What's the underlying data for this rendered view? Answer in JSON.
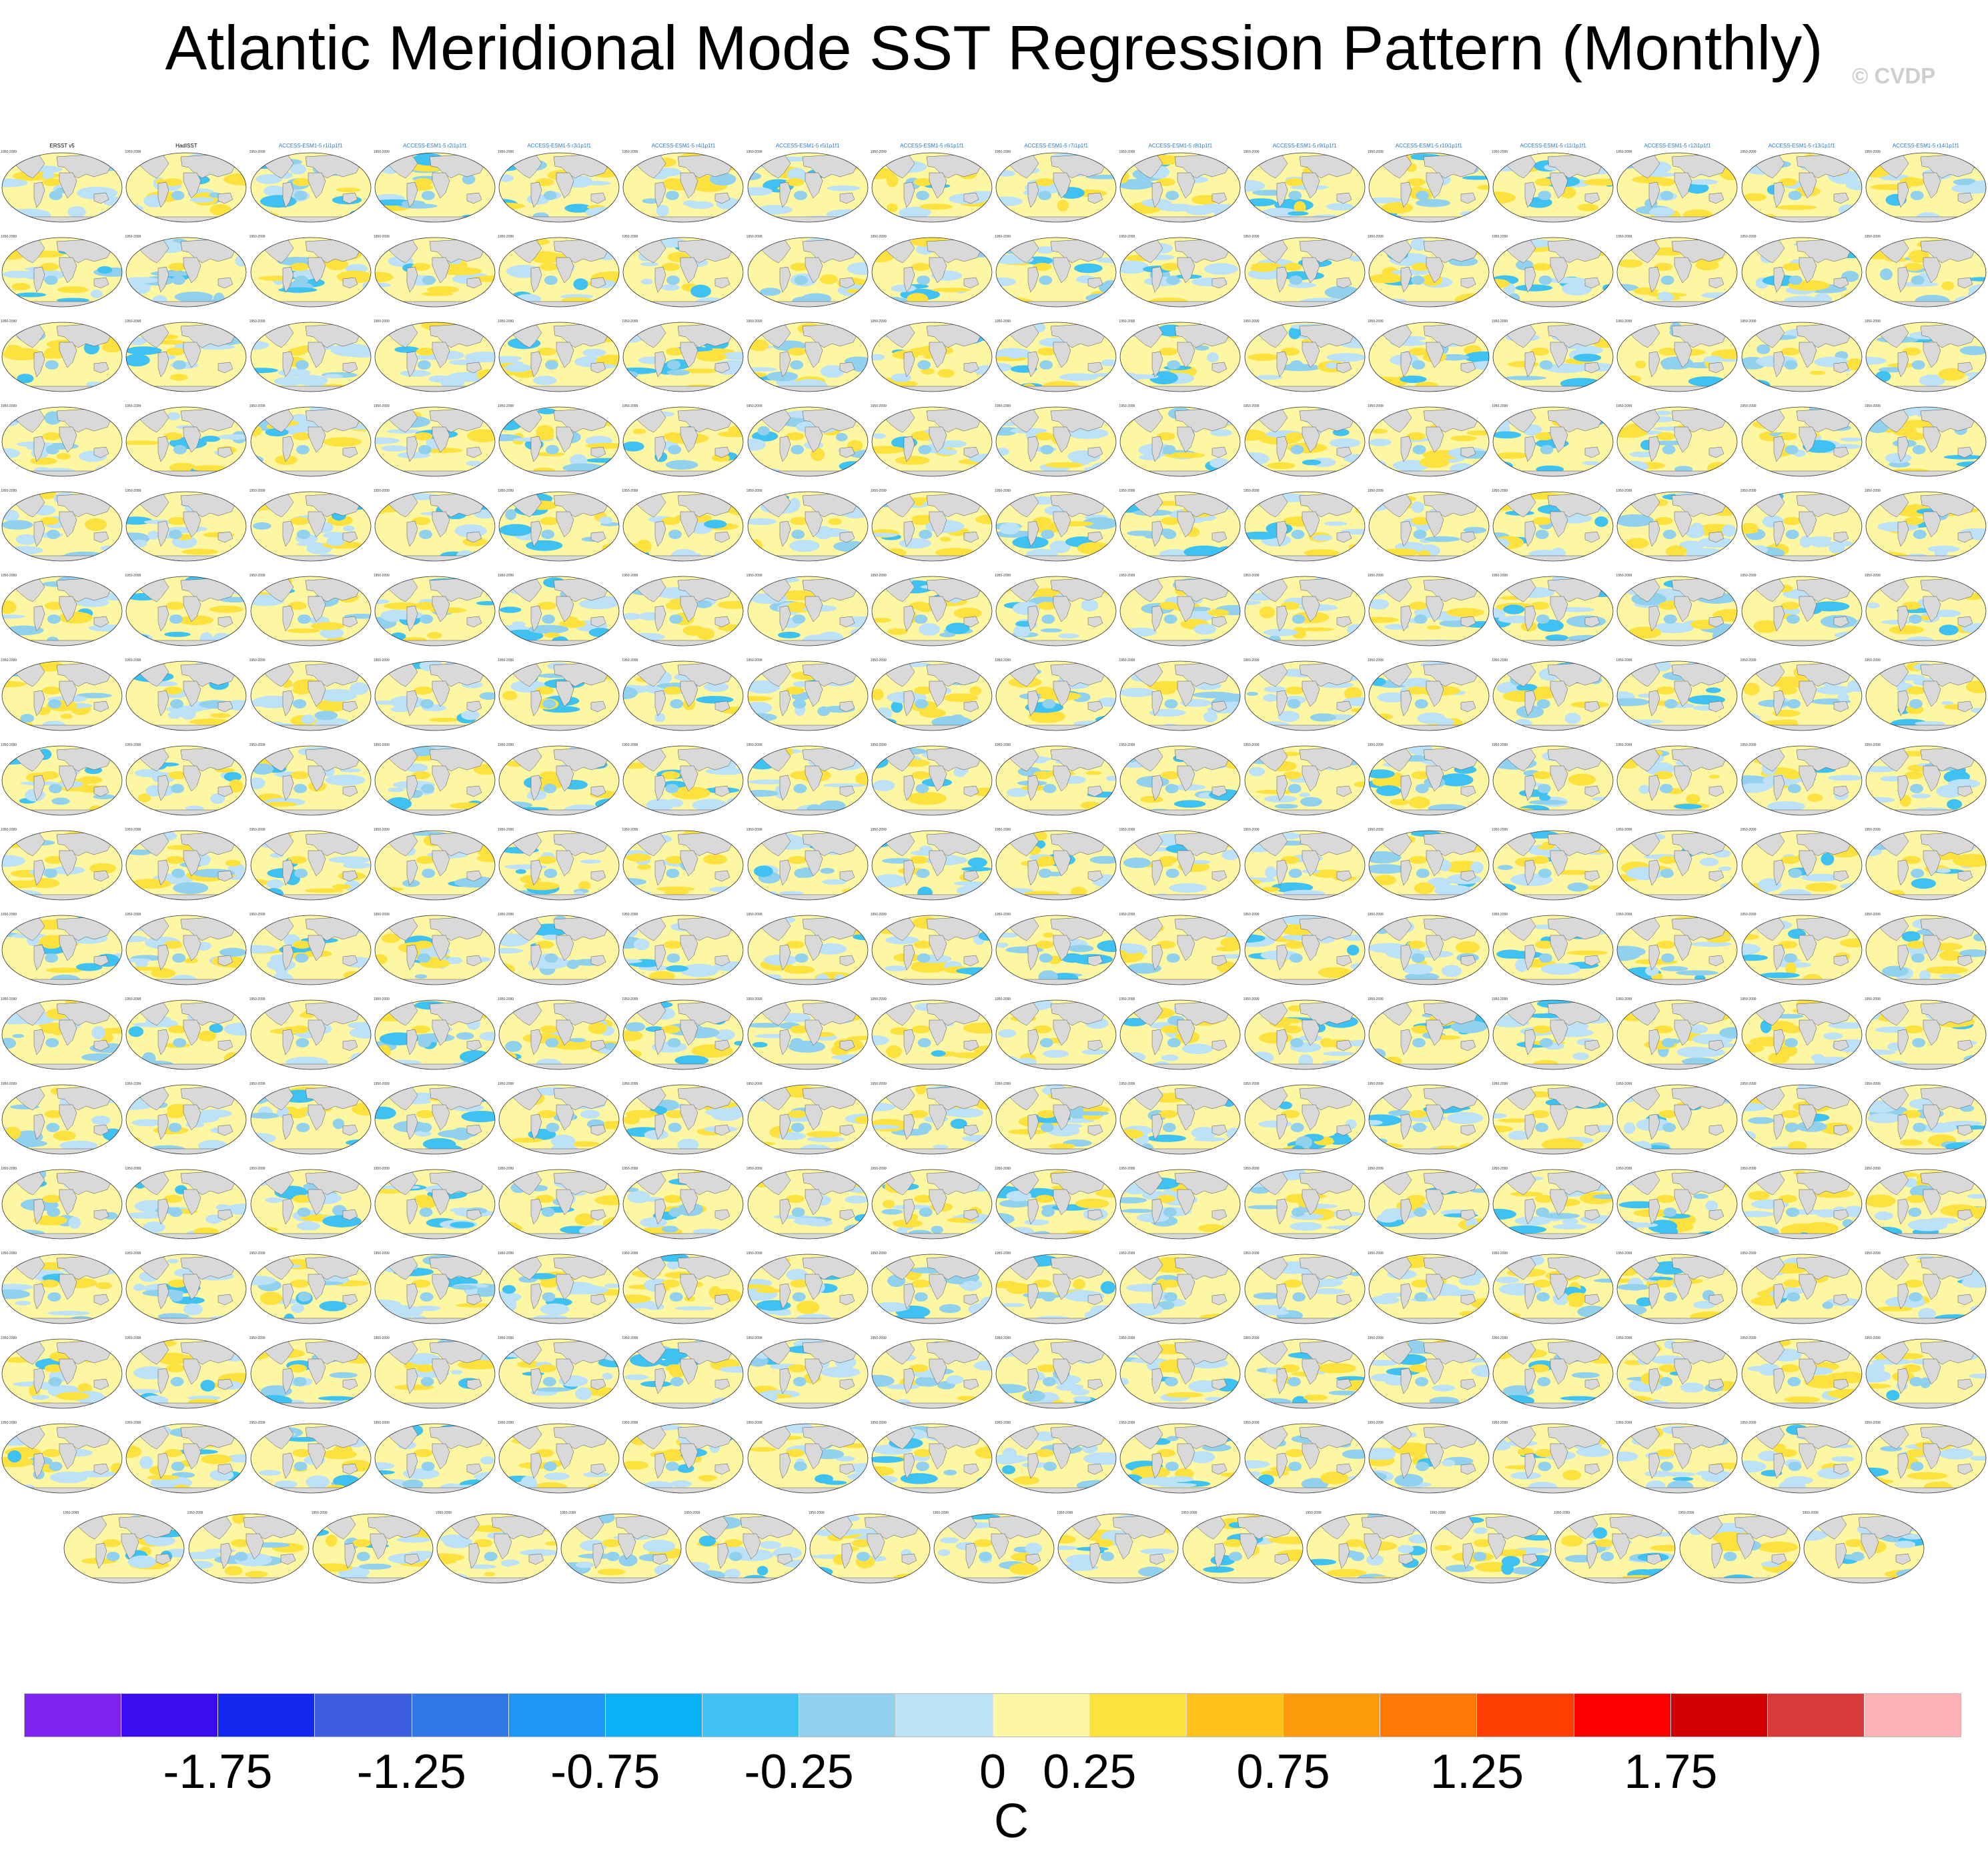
{
  "title": "Atlantic Meridional Mode SST Regression Pattern (Monthly)",
  "copyright": "© CVDP",
  "colorbar": {
    "units": "C",
    "tick_labels": [
      "-1.75",
      "-1.25",
      "-0.75",
      "-0.25",
      "0",
      "0.25",
      "0.75",
      "1.25",
      "1.75"
    ],
    "colors": [
      "#7f22ee",
      "#3b0cf0",
      "#1527ef",
      "#3d5ee0",
      "#3177e6",
      "#1f96f5",
      "#0ab1f6",
      "#3fc1f1",
      "#91d1ee",
      "#bde1f6",
      "#fdf6a2",
      "#fde23f",
      "#fdc11a",
      "#fd9b0a",
      "#fe7a06",
      "#fe3d03",
      "#fa0000",
      "#d10000",
      "#d63a3a",
      "#fdb2b6"
    ]
  },
  "panel_titles": [
    "ERSST v5",
    "HadISST",
    "ACCESS-ESM1-5 r1i1p1f1",
    "ACCESS-ESM1-5 r2i1p1f1",
    "ACCESS-ESM1-5 r3i1p1f1",
    "ACCESS-ESM1-5 r4i1p1f1",
    "ACCESS-ESM1-5 r5i1p1f1",
    "ACCESS-ESM1-5 r6i1p1f1",
    "ACCESS-ESM1-5 r7i1p1f1",
    "ACCESS-ESM1-5 r8i1p1f1",
    "ACCESS-ESM1-5 r9i1p1f1",
    "ACCESS-ESM1-5 r10i1p1f1",
    "ACCESS-ESM1-5 r11i1p1f1",
    "ACCESS-ESM1-5 r12i1p1f1",
    "ACCESS-ESM1-5 r13i1p1f1",
    "ACCESS-ESM1-5 r14i1p1f1"
  ],
  "panel_year_label": "1950-2099",
  "panels": {
    "rows": 17,
    "per_row": 16,
    "last_row_count": 15
  }
}
